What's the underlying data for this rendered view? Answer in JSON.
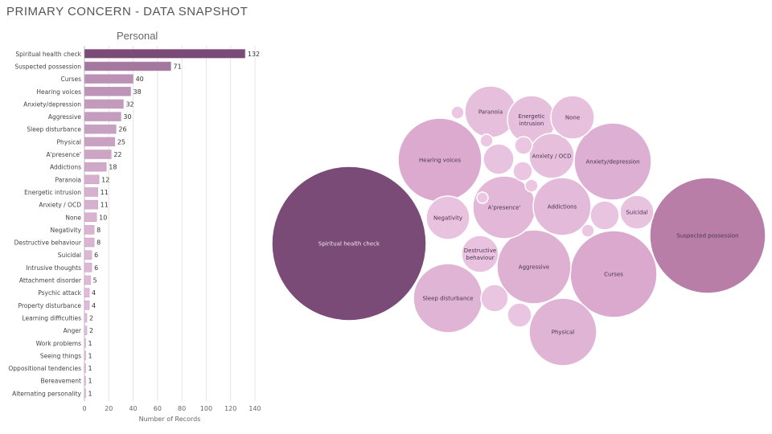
{
  "page": {
    "title": "PRIMARY CONCERN - DATA SNAPSHOT"
  },
  "colors": {
    "bar_base": "#e8c3df",
    "bar_strong": "#7b4b78",
    "bar_outline": "#c79ac0",
    "gridline": "#e4e4e4",
    "bubble_dark": "#7b4b78",
    "bubble_mid": "#b97ea8",
    "bubble_light": "#d9a7cc",
    "bubble_lighter": "#ebc8e3",
    "bubble_stroke": "#ffffff"
  },
  "chart_data": [
    {
      "type": "bar",
      "orientation": "horizontal",
      "title": "Personal",
      "xlabel": "Number of Records",
      "ylabel": "",
      "xlim": [
        0,
        140
      ],
      "xticks": [
        0,
        20,
        40,
        60,
        80,
        100,
        120,
        140
      ],
      "grid": true,
      "categories": [
        "Spiritual health check",
        "Suspected possession",
        "Curses",
        "Hearing voices",
        "Anxiety/depression",
        "Aggressive",
        "Sleep disturbance",
        "Physical",
        "A'presence'",
        "Addictions",
        "Paranoia",
        "Energetic intrusion",
        "Anxiety / OCD",
        "None",
        "Negativity",
        "Destructive behaviour",
        "Suicidal",
        "Intrusive thoughts",
        "Attachment disorder",
        "Psychic attack",
        "Property disturbance",
        "Learning difficulties",
        "Anger",
        "Work problems",
        "Seeing things",
        "Oppositional tendencies",
        "Bereavement",
        "Alternating personality"
      ],
      "values": [
        132,
        71,
        40,
        38,
        32,
        30,
        26,
        25,
        22,
        18,
        12,
        11,
        11,
        10,
        8,
        8,
        6,
        6,
        5,
        4,
        4,
        2,
        2,
        1,
        1,
        1,
        1,
        1
      ]
    },
    {
      "type": "bubble",
      "title": "",
      "bubbles": [
        {
          "label": "Spiritual health check",
          "value": 132
        },
        {
          "label": "Suspected possession",
          "value": 71
        },
        {
          "label": "Curses",
          "value": 40
        },
        {
          "label": "Hearing voices",
          "value": 38
        },
        {
          "label": "Anxiety/depression",
          "value": 32
        },
        {
          "label": "Aggressive",
          "value": 30
        },
        {
          "label": "Sleep disturbance",
          "value": 26
        },
        {
          "label": "Physical",
          "value": 25
        },
        {
          "label": "A'presence'",
          "value": 22
        },
        {
          "label": "Addictions",
          "value": 18
        },
        {
          "label": "Paranoia",
          "value": 12
        },
        {
          "label": "Energetic intrusion",
          "value": 11
        },
        {
          "label": "Anxiety / OCD",
          "value": 11
        },
        {
          "label": "None",
          "value": 10
        },
        {
          "label": "Negativity",
          "value": 8
        },
        {
          "label": "Destructive behaviour",
          "value": 8
        },
        {
          "label": "Suicidal",
          "value": 6
        },
        {
          "label": "",
          "value": 6
        },
        {
          "label": "",
          "value": 5
        },
        {
          "label": "",
          "value": 4
        },
        {
          "label": "",
          "value": 4
        },
        {
          "label": "",
          "value": 2
        },
        {
          "label": "",
          "value": 2
        },
        {
          "label": "",
          "value": 1
        },
        {
          "label": "",
          "value": 1
        },
        {
          "label": "",
          "value": 1
        },
        {
          "label": "",
          "value": 1
        },
        {
          "label": "",
          "value": 1
        }
      ]
    }
  ]
}
